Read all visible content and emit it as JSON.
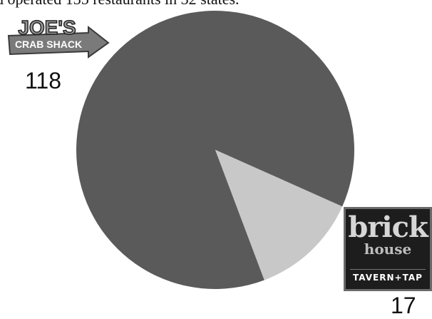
{
  "header_text": "d operated 135 restaurants in 32 states.",
  "chart_data": {
    "type": "pie",
    "title": "",
    "categories": [
      "Joe's Crab Shack",
      "Brick House Tavern + Tap"
    ],
    "values": [
      118,
      17
    ],
    "value_labels": [
      "118",
      "17"
    ],
    "colors": [
      "#5a5a5a",
      "#c8c8c8"
    ]
  },
  "logos": {
    "joes_line1": "JOE'S",
    "joes_line2": "CRAB SHACK",
    "brick_line1": "brick",
    "brick_line2": "house",
    "brick_line3": "TAVERN+TAP"
  }
}
